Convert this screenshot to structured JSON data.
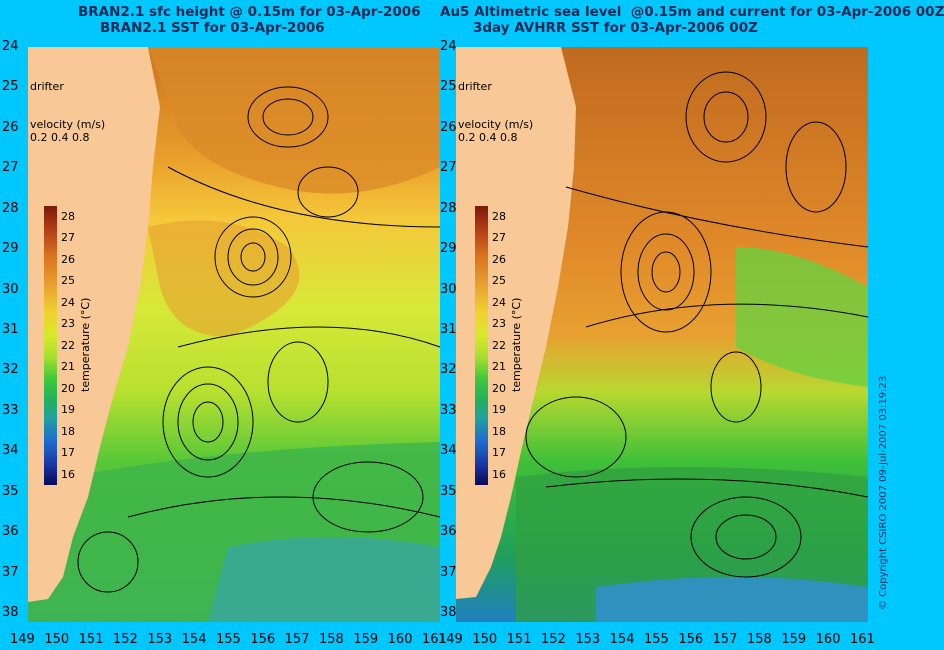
{
  "left": {
    "title_line1": "BRAN2.1 sfc height @ 0.15m for 03-Apr-2006",
    "title_line2": "BRAN2.1 SST for 03-Apr-2006",
    "drifter_label": "drifter",
    "velocity_label": "velocity (m/s)",
    "velocity_values": "0.2 0.4 0.8",
    "colorbar_label": "temperature (°C)"
  },
  "right": {
    "title_line1": "Au5 Altimetric sea level  @0.15m and current for 03-Apr-2006 00Z",
    "title_line2": "3day AVHRR SST for 03-Apr-2006 00Z",
    "drifter_label": "drifter",
    "velocity_label": "velocity (m/s)",
    "velocity_values": "0.2 0.4 0.8",
    "colorbar_label": "temperature (°C)"
  },
  "lat_labels": [
    "24",
    "25",
    "26",
    "27",
    "28",
    "29",
    "30",
    "31",
    "32",
    "33",
    "34",
    "35",
    "36",
    "37",
    "38"
  ],
  "lon_labels": [
    "149",
    "150",
    "151",
    "152",
    "153",
    "154",
    "155",
    "156",
    "157",
    "158",
    "159",
    "160",
    "161"
  ],
  "colorbar_ticks": [
    "28",
    "27",
    "26",
    "25",
    "24",
    "23",
    "22",
    "21",
    "20",
    "19",
    "18",
    "17",
    "16"
  ],
  "copyright": "© Copyright CSIRO 2007   09-Jul-2007 03:19:23",
  "colors": {
    "background": "#00c8ff",
    "land": "#f8c896",
    "drifter": "#ff33ff"
  }
}
